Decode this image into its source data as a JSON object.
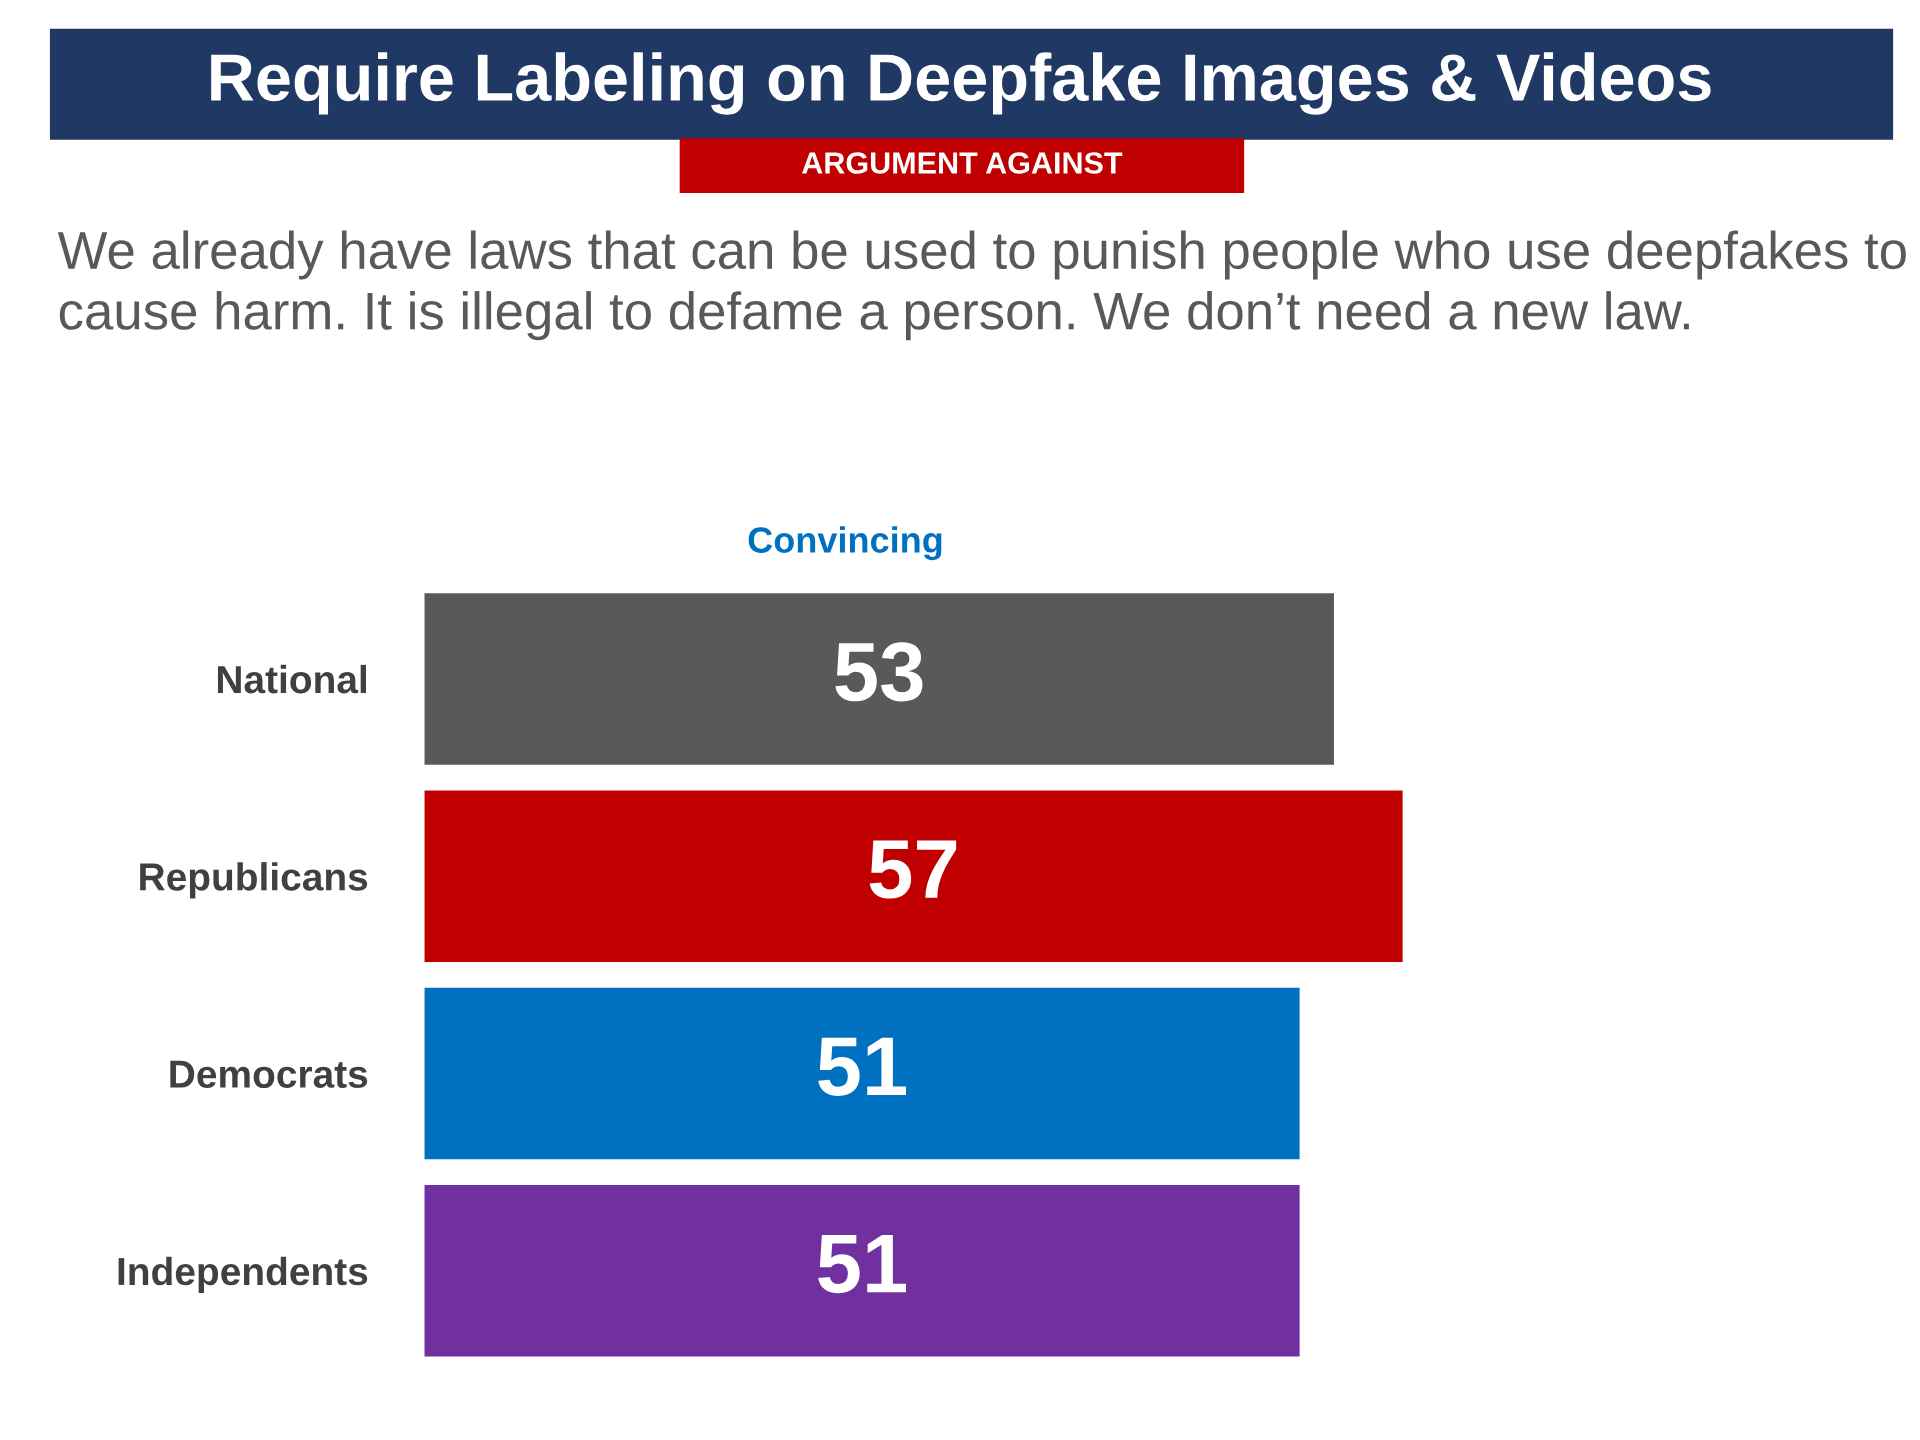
{
  "chart_data": {
    "type": "bar",
    "orientation": "horizontal",
    "title": "Require Labeling on Deepfake Images & Videos",
    "subtitle": "ARGUMENT AGAINST",
    "annotations": [
      "We already have laws that can be used to punish people who use deepfakes to cause harm. It is illegal to defame a person. We don’t need a new law."
    ],
    "xlabel": "Convincing",
    "categories": [
      "National",
      "Republicans",
      "Democrats",
      "Independents"
    ],
    "values": [
      53,
      57,
      51,
      51
    ],
    "colors": [
      "#595959",
      "#c00000",
      "#0070c0",
      "#7030a0"
    ],
    "data_labels": true,
    "grid": false,
    "legend": false,
    "tick_labels": "y"
  }
}
